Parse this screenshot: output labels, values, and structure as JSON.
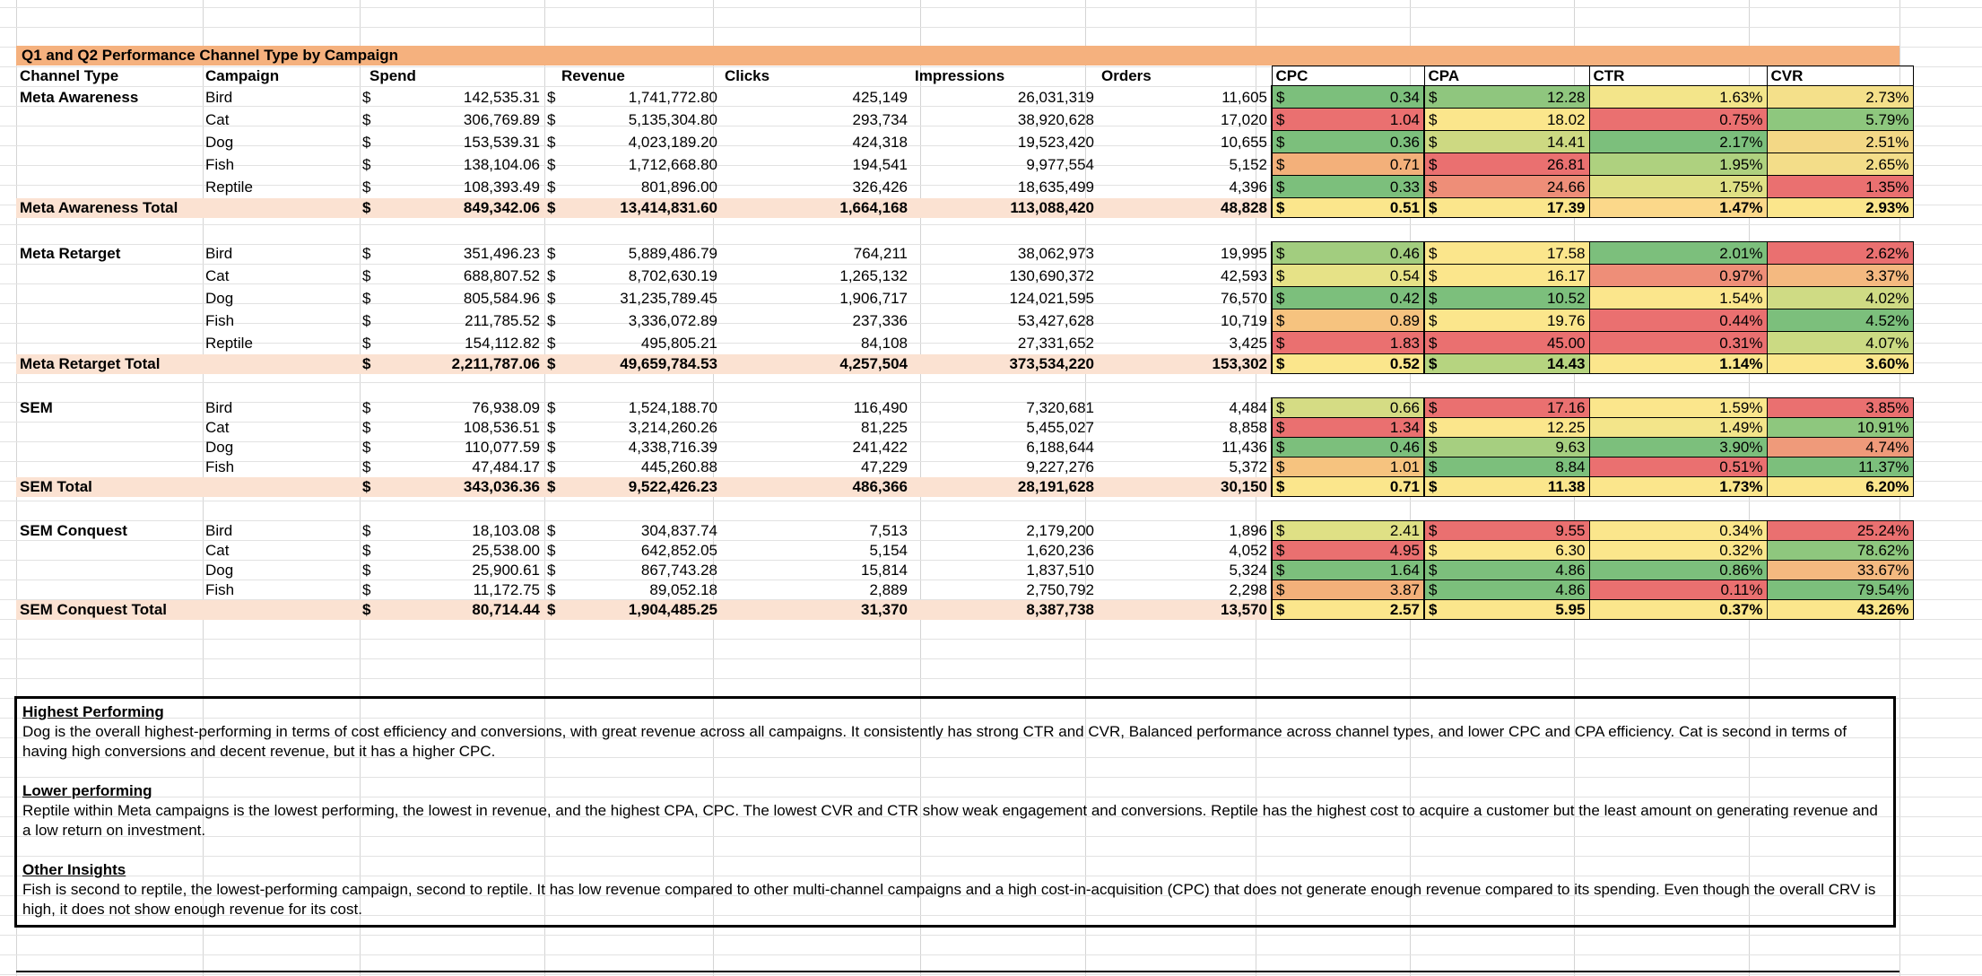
{
  "sheet": {
    "title": "Q1 and Q2 Performance Channel Type by Campaign",
    "headers": [
      "Channel Type",
      "Campaign",
      "Spend",
      "Revenue",
      "Clicks",
      "Impressions",
      "Orders",
      "CPC",
      "CPA",
      "CTR",
      "CVR"
    ],
    "currency_symbol": "$",
    "colors": {
      "title_bg": "#f5b17e",
      "total_bg": "#fbe2d2",
      "good": "#7cbf7c",
      "mid": "#fbe68c",
      "bad": "#ea7070"
    },
    "groups": [
      {
        "channel": "Meta Awareness",
        "rows": [
          {
            "campaign": "Bird",
            "spend": "142,535.31",
            "revenue": "1,741,772.80",
            "clicks": "425,149",
            "impressions": "26,031,319",
            "orders": "11,605",
            "cpc": "0.34",
            "cpa": "12.28",
            "ctr": "1.63%",
            "cvr": "2.73%",
            "cpc_c": "#7cbf7c",
            "cpa_c": "#8fc67e",
            "ctr_c": "#f3e58a",
            "cvr_c": "#f4e08a"
          },
          {
            "campaign": "Cat",
            "spend": "306,769.89",
            "revenue": "5,135,304.80",
            "clicks": "293,734",
            "impressions": "38,920,628",
            "orders": "17,020",
            "cpc": "1.04",
            "cpa": "18.02",
            "ctr": "0.75%",
            "cvr": "5.79%",
            "cpc_c": "#ea7070",
            "cpa_c": "#fbe68c",
            "ctr_c": "#ea7070",
            "cvr_c": "#8ec77e"
          },
          {
            "campaign": "Dog",
            "spend": "153,539.31",
            "revenue": "4,023,189.20",
            "clicks": "424,318",
            "impressions": "19,523,420",
            "orders": "10,655",
            "cpc": "0.36",
            "cpa": "14.41",
            "ctr": "2.17%",
            "cvr": "2.51%",
            "cpc_c": "#7cbf7c",
            "cpa_c": "#cdd982",
            "ctr_c": "#7cbf7c",
            "cvr_c": "#f3d886"
          },
          {
            "campaign": "Fish",
            "spend": "138,104.06",
            "revenue": "1,712,668.80",
            "clicks": "194,541",
            "impressions": "9,977,554",
            "orders": "5,152",
            "cpc": "0.71",
            "cpa": "26.81",
            "ctr": "1.95%",
            "cvr": "2.65%",
            "cpc_c": "#f3b07a",
            "cpa_c": "#ea7070",
            "ctr_c": "#aed17f",
            "cvr_c": "#f3dd89"
          },
          {
            "campaign": "Reptile",
            "spend": "108,393.49",
            "revenue": "801,896.00",
            "clicks": "326,426",
            "impressions": "18,635,499",
            "orders": "4,396",
            "cpc": "0.33",
            "cpa": "24.66",
            "ctr": "1.75%",
            "cvr": "1.35%",
            "cpc_c": "#7cbf7c",
            "cpa_c": "#ee8e78",
            "ctr_c": "#dfe085",
            "cvr_c": "#ea7070"
          }
        ],
        "total": {
          "label": "Meta Awareness Total",
          "spend": "849,342.06",
          "revenue": "13,414,831.60",
          "clicks": "1,664,168",
          "impressions": "113,088,420",
          "orders": "48,828",
          "cpc": "0.51",
          "cpa": "17.39",
          "ctr": "1.47%",
          "cvr": "2.93%",
          "cpc_c": "#fbe68c",
          "cpa_c": "#fbe68c",
          "ctr_c": "#fbd88a",
          "cvr_c": "#fbe68c"
        }
      },
      {
        "channel": "Meta Retarget",
        "rows": [
          {
            "campaign": "Bird",
            "spend": "351,496.23",
            "revenue": "5,889,486.79",
            "clicks": "764,211",
            "impressions": "38,062,973",
            "orders": "19,995",
            "cpc": "0.46",
            "cpa": "17.58",
            "ctr": "2.01%",
            "cvr": "2.62%",
            "cpc_c": "#a2cd7f",
            "cpa_c": "#fbe68c",
            "ctr_c": "#7cbf7c",
            "cvr_c": "#ea7070"
          },
          {
            "campaign": "Cat",
            "spend": "688,807.52",
            "revenue": "8,702,630.19",
            "clicks": "1,265,132",
            "impressions": "130,690,372",
            "orders": "42,593",
            "cpc": "0.54",
            "cpa": "16.17",
            "ctr": "0.97%",
            "cvr": "3.37%",
            "cpc_c": "#e6e287",
            "cpa_c": "#fbe68c",
            "ctr_c": "#ee8e78",
            "cvr_c": "#f4b980"
          },
          {
            "campaign": "Dog",
            "spend": "805,584.96",
            "revenue": "31,235,789.45",
            "clicks": "1,906,717",
            "impressions": "124,021,595",
            "orders": "76,570",
            "cpc": "0.42",
            "cpa": "10.52",
            "ctr": "1.54%",
            "cvr": "4.02%",
            "cpc_c": "#7cbf7c",
            "cpa_c": "#7cbf7c",
            "ctr_c": "#fbe68c",
            "cvr_c": "#cfdb84"
          },
          {
            "campaign": "Fish",
            "spend": "211,785.52",
            "revenue": "3,336,072.89",
            "clicks": "237,336",
            "impressions": "53,427,628",
            "orders": "10,719",
            "cpc": "0.89",
            "cpa": "19.76",
            "ctr": "0.44%",
            "cvr": "4.52%",
            "cpc_c": "#f6c37f",
            "cpa_c": "#fbe68c",
            "ctr_c": "#ea7070",
            "cvr_c": "#7cbf7c"
          },
          {
            "campaign": "Reptile",
            "spend": "154,112.82",
            "revenue": "495,805.21",
            "clicks": "84,108",
            "impressions": "27,331,652",
            "orders": "3,425",
            "cpc": "1.83",
            "cpa": "45.00",
            "ctr": "0.31%",
            "cvr": "4.07%",
            "cpc_c": "#ea7070",
            "cpa_c": "#ea7070",
            "ctr_c": "#ea7070",
            "cvr_c": "#cbda83"
          }
        ],
        "total": {
          "label": "Meta Retarget Total",
          "spend": "2,211,787.06",
          "revenue": "49,659,784.53",
          "clicks": "4,257,504",
          "impressions": "373,534,220",
          "orders": "153,302",
          "cpc": "0.52",
          "cpa": "14.43",
          "ctr": "1.14%",
          "cvr": "3.60%",
          "cpc_c": "#fbe68c",
          "cpa_c": "#b6d480",
          "ctr_c": "#fbe68c",
          "cvr_c": "#fbe68c"
        }
      },
      {
        "channel": "SEM",
        "rows": [
          {
            "campaign": "Bird",
            "spend": "76,938.09",
            "revenue": "1,524,188.70",
            "clicks": "116,490",
            "impressions": "7,320,681",
            "orders": "4,484",
            "cpc": "0.66",
            "cpa": "17.16",
            "ctr": "1.59%",
            "cvr": "3.85%",
            "cpc_c": "#d5dc84",
            "cpa_c": "#ea7070",
            "ctr_c": "#fbe68c",
            "cvr_c": "#ea7070"
          },
          {
            "campaign": "Cat",
            "spend": "108,536.51",
            "revenue": "3,214,260.26",
            "clicks": "81,225",
            "impressions": "5,455,027",
            "orders": "8,858",
            "cpc": "1.34",
            "cpa": "12.25",
            "ctr": "1.49%",
            "cvr": "10.91%",
            "cpc_c": "#ea7070",
            "cpa_c": "#fbe68c",
            "ctr_c": "#f3e58a",
            "cvr_c": "#8ec77e"
          },
          {
            "campaign": "Dog",
            "spend": "110,077.59",
            "revenue": "4,338,716.39",
            "clicks": "241,422",
            "impressions": "6,188,644",
            "orders": "11,436",
            "cpc": "0.46",
            "cpa": "9.63",
            "ctr": "3.90%",
            "cvr": "4.74%",
            "cpc_c": "#7cbf7c",
            "cpa_c": "#a6cf80",
            "ctr_c": "#7cbf7c",
            "cvr_c": "#ef9a7a"
          },
          {
            "campaign": "Fish",
            "spend": "47,484.17",
            "revenue": "445,260.88",
            "clicks": "47,229",
            "impressions": "9,227,276",
            "orders": "5,372",
            "cpc": "1.01",
            "cpa": "8.84",
            "ctr": "0.51%",
            "cvr": "11.37%",
            "cpc_c": "#f6c37f",
            "cpa_c": "#7cbf7c",
            "ctr_c": "#ea7070",
            "cvr_c": "#7cbf7c"
          }
        ],
        "total": {
          "label": "SEM Total",
          "spend": "343,036.36",
          "revenue": "9,522,426.23",
          "clicks": "486,366",
          "impressions": "28,191,628",
          "orders": "30,150",
          "cpc": "0.71",
          "cpa": "11.38",
          "ctr": "1.73%",
          "cvr": "6.20%",
          "cpc_c": "#fbe68c",
          "cpa_c": "#fbe68c",
          "ctr_c": "#fbe68c",
          "cvr_c": "#fbe68c"
        }
      },
      {
        "channel": "SEM Conquest",
        "rows": [
          {
            "campaign": "Bird",
            "spend": "18,103.08",
            "revenue": "304,837.74",
            "clicks": "7,513",
            "impressions": "2,179,200",
            "orders": "1,896",
            "cpc": "2.41",
            "cpa": "9.55",
            "ctr": "0.34%",
            "cvr": "25.24%",
            "cpc_c": "#dfe085",
            "cpa_c": "#ea7070",
            "ctr_c": "#fbe68c",
            "cvr_c": "#ea7070"
          },
          {
            "campaign": "Cat",
            "spend": "25,538.00",
            "revenue": "642,852.05",
            "clicks": "5,154",
            "impressions": "1,620,236",
            "orders": "4,052",
            "cpc": "4.95",
            "cpa": "6.30",
            "ctr": "0.32%",
            "cvr": "78.62%",
            "cpc_c": "#ea7070",
            "cpa_c": "#fbe68c",
            "ctr_c": "#fbe68c",
            "cvr_c": "#8ec77e"
          },
          {
            "campaign": "Dog",
            "spend": "25,900.61",
            "revenue": "867,743.28",
            "clicks": "15,814",
            "impressions": "1,837,510",
            "orders": "5,324",
            "cpc": "1.64",
            "cpa": "4.86",
            "ctr": "0.86%",
            "cvr": "33.67%",
            "cpc_c": "#7cbf7c",
            "cpa_c": "#7cbf7c",
            "ctr_c": "#7cbf7c",
            "cvr_c": "#f4b980"
          },
          {
            "campaign": "Fish",
            "spend": "11,172.75",
            "revenue": "89,052.18",
            "clicks": "2,889",
            "impressions": "2,750,792",
            "orders": "2,298",
            "cpc": "3.87",
            "cpa": "4.86",
            "ctr": "0.11%",
            "cvr": "79.54%",
            "cpc_c": "#f3b07a",
            "cpa_c": "#7cbf7c",
            "ctr_c": "#ea7070",
            "cvr_c": "#7cbf7c"
          }
        ],
        "total": {
          "label": "SEM Conquest Total",
          "spend": "80,714.44",
          "revenue": "1,904,485.25",
          "clicks": "31,370",
          "impressions": "8,387,738",
          "orders": "13,570",
          "cpc": "2.57",
          "cpa": "5.95",
          "ctr": "0.37%",
          "cvr": "43.26%",
          "cpc_c": "#fbe68c",
          "cpa_c": "#fbe68c",
          "ctr_c": "#fbe68c",
          "cvr_c": "#fbe68c"
        }
      }
    ]
  },
  "notes": [
    {
      "heading": "Highest Performing ",
      "body": "Dog is the overall highest-performing in terms of cost efficiency and conversions, with great revenue across all campaigns. It consistently has strong CTR and CVR, Balanced performance across channel types, and lower CPC and CPA efficiency. Cat is second in terms of having high conversions and decent revenue, but it has a higher CPC."
    },
    {
      "heading": "Lower performing ",
      "body": "Reptile within Meta campaigns is the lowest performing, the lowest in revenue, and the highest CPA, CPC. The lowest CVR and CTR show weak engagement and conversions. Reptile has the highest cost to acquire a customer but the least amount on generating revenue and a low return on investment."
    },
    {
      "heading": "Other Insights",
      "body": "Fish is second to reptile, the lowest-performing campaign, second to reptile. It has low revenue compared to other multi-channel campaigns and a high cost-in-acquisition (CPC) that does not generate enough revenue compared to its spending. Even though the overall CRV is high, it does not show enough revenue for its cost."
    }
  ]
}
